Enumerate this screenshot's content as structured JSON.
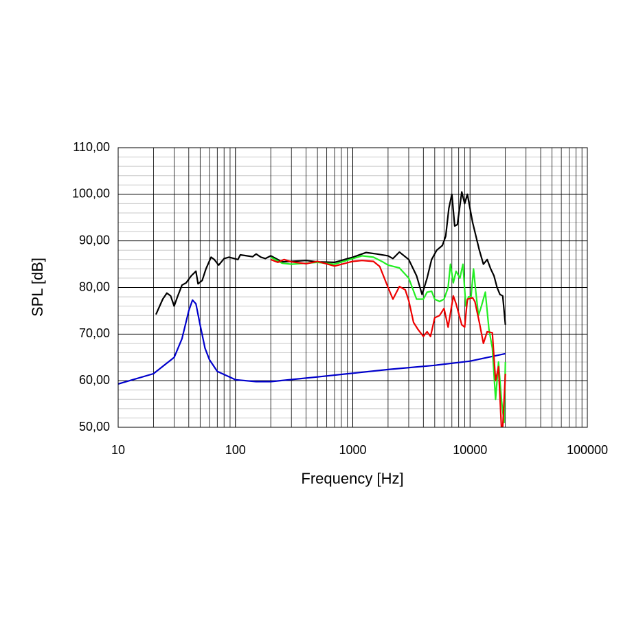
{
  "chart_data": {
    "type": "line",
    "xlabel": "Frequency [Hz]",
    "ylabel": "SPL [dB]",
    "xscale": "log",
    "grid": true,
    "xlim": [
      10,
      100000
    ],
    "ylim": [
      50,
      110
    ],
    "xticks": [
      10,
      100,
      1000,
      10000,
      100000
    ],
    "yticks": [
      {
        "value": 50,
        "label": "50,00"
      },
      {
        "value": 60,
        "label": "60,00"
      },
      {
        "value": 70,
        "label": "70,00"
      },
      {
        "value": 80,
        "label": "80,00"
      },
      {
        "value": 90,
        "label": "90,00"
      },
      {
        "value": 100,
        "label": "100,00"
      },
      {
        "value": 110,
        "label": "110,00"
      }
    ],
    "xminorticks": [
      20,
      30,
      40,
      50,
      60,
      70,
      80,
      90,
      200,
      300,
      400,
      500,
      600,
      700,
      800,
      900,
      2000,
      3000,
      4000,
      5000,
      6000,
      7000,
      8000,
      9000,
      20000,
      30000,
      40000,
      50000,
      60000,
      70000,
      80000,
      90000
    ],
    "yminorticks": [
      52,
      54,
      56,
      58,
      62,
      64,
      66,
      68,
      72,
      74,
      76,
      78,
      82,
      84,
      86,
      88,
      92,
      94,
      96,
      98,
      102,
      104,
      106,
      108
    ],
    "series": [
      {
        "color": "#0000cc",
        "x": [
          10,
          20,
          30,
          35,
          40,
          43,
          46,
          50,
          55,
          60,
          70,
          100,
          150,
          200,
          500,
          1000,
          2000,
          5000,
          10000,
          20000
        ],
        "values": [
          59.3,
          61.5,
          65,
          69,
          75,
          77.3,
          76.5,
          72,
          67,
          64.5,
          62,
          60.2,
          59.8,
          59.8,
          60.8,
          61.6,
          62.4,
          63.3,
          64.2,
          65.8
        ]
      },
      {
        "color": "#000000",
        "x": [
          21,
          24,
          26,
          28,
          30,
          32,
          35,
          38,
          42,
          46,
          48,
          52,
          56,
          62,
          66,
          72,
          80,
          88,
          95,
          105,
          110,
          125,
          140,
          150,
          165,
          180,
          200,
          250,
          300,
          400,
          500,
          700,
          1000,
          1300,
          1600,
          2000,
          2200,
          2500,
          3000,
          3500,
          3900,
          4300,
          4700,
          5200,
          5800,
          6200,
          6600,
          7000,
          7400,
          7800,
          8500,
          9000,
          9500,
          10500,
          12000,
          13000,
          14000,
          15000,
          16000,
          17000,
          18000,
          19000,
          20000
        ],
        "values": [
          74.2,
          77.5,
          78.8,
          78.2,
          76,
          78,
          80.5,
          81,
          82.5,
          83.5,
          80.8,
          81.5,
          84,
          86.5,
          86,
          84.8,
          86.2,
          86.5,
          86.3,
          86,
          87,
          86.8,
          86.6,
          87.2,
          86.5,
          86.2,
          86.8,
          85.5,
          85.6,
          85.8,
          85.5,
          85.4,
          86.5,
          87.5,
          87.2,
          86.8,
          86.2,
          87.6,
          86,
          82.5,
          78.5,
          82,
          86,
          88,
          89,
          91,
          97,
          100,
          93.2,
          93.5,
          100.5,
          98,
          100,
          94,
          88,
          85,
          86,
          84,
          82.5,
          80,
          78.5,
          78.2,
          72
        ]
      },
      {
        "color": "#22ee22",
        "x": [
          200,
          250,
          300,
          400,
          500,
          700,
          1000,
          1200,
          1500,
          1800,
          2000,
          2500,
          3000,
          3500,
          4000,
          4300,
          4700,
          5000,
          5500,
          6000,
          6500,
          6800,
          7200,
          7600,
          8200,
          8700,
          9200,
          9700,
          10200,
          10700,
          11200,
          11800,
          12500,
          13500,
          14500,
          15500,
          16500,
          17500,
          18500,
          19500,
          20000
        ],
        "values": [
          86.5,
          85.2,
          85,
          85.2,
          85.4,
          85,
          86.2,
          86.8,
          86.5,
          85.5,
          84.8,
          84.2,
          82,
          77.5,
          77.5,
          79,
          79.2,
          77.5,
          77,
          77.5,
          80,
          85,
          81,
          83.5,
          82,
          85,
          76,
          78,
          78,
          84,
          79,
          74,
          76,
          79,
          71,
          67,
          56,
          64,
          56,
          51,
          64
        ]
      },
      {
        "color": "#ee0000",
        "x": [
          200,
          230,
          260,
          300,
          400,
          500,
          700,
          1000,
          1200,
          1500,
          1700,
          2000,
          2200,
          2500,
          2800,
          3000,
          3300,
          3600,
          4000,
          4300,
          4600,
          5000,
          5500,
          6000,
          6500,
          7200,
          7600,
          8500,
          9000,
          9500,
          10500,
          11000,
          12000,
          13000,
          14000,
          15500,
          16500,
          17500,
          18500,
          19000,
          20000
        ],
        "values": [
          86,
          85.4,
          86,
          85.5,
          85.1,
          85.6,
          84.6,
          85.6,
          85.8,
          85.6,
          84.5,
          80,
          77.5,
          80.2,
          79.5,
          77.2,
          72.5,
          71,
          69.5,
          70.5,
          69.5,
          73.5,
          74,
          75.5,
          71.5,
          78.2,
          76.5,
          72,
          71.5,
          77.5,
          77.8,
          77,
          72.5,
          68,
          70.5,
          70.3,
          60,
          63,
          50,
          50,
          61.5
        ]
      }
    ]
  }
}
